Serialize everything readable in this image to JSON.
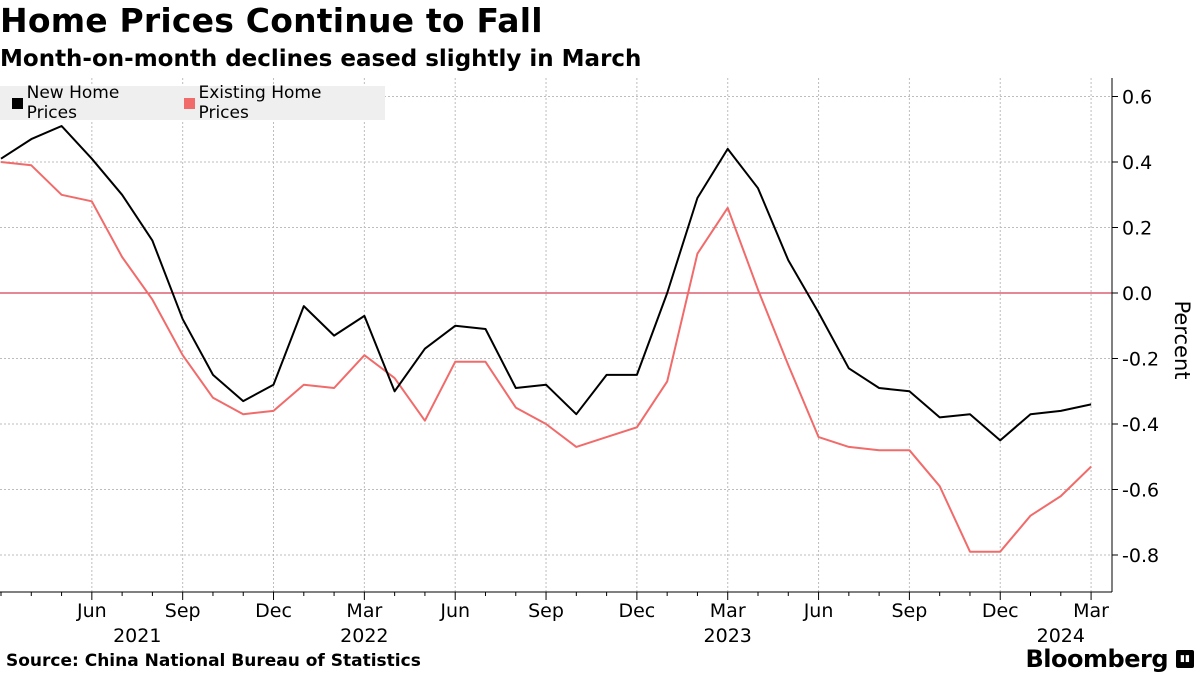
{
  "header": {
    "title": "Home Prices Continue to Fall",
    "subtitle": "Month-on-month declines eased slightly in March"
  },
  "footer": {
    "source": "Source: China National Bureau of Statistics",
    "brand": "Bloomberg",
    "brand_icon_text": "▮▮"
  },
  "colors": {
    "new_home": "#000000",
    "existing_home": "#f16b6b",
    "zero_line": "#c8102e",
    "grid": "#bdbdbd"
  },
  "chart_data": {
    "type": "line",
    "title": "Home Prices Continue to Fall",
    "subtitle": "Month-on-month declines eased slightly in March",
    "ylabel": "Percent",
    "xlabel": "",
    "ylim": [
      -0.9,
      0.65
    ],
    "yticks": [
      0.6,
      0.4,
      0.2,
      0.0,
      -0.2,
      -0.4,
      -0.6,
      -0.8
    ],
    "ytick_labels": [
      "0.6",
      "0.4",
      "0.2",
      "0.0",
      "-0.2",
      "-0.4",
      "-0.6",
      "-0.8"
    ],
    "x_month_ticks": [
      "Jun",
      "Sep",
      "Dec",
      "Mar",
      "Jun",
      "Sep",
      "Dec",
      "Mar",
      "Jun",
      "Sep",
      "Dec",
      "Mar"
    ],
    "x_month_tick_index": [
      3,
      6,
      9,
      12,
      15,
      18,
      21,
      24,
      27,
      30,
      33,
      36
    ],
    "x_year_labels": [
      "2021",
      "2022",
      "2023",
      "2024"
    ],
    "x_year_label_index": [
      4.5,
      12.0,
      24.0,
      35.0
    ],
    "legend_position": "top-left",
    "grid": true,
    "x": [
      "2021-03",
      "2021-04",
      "2021-05",
      "2021-06",
      "2021-07",
      "2021-08",
      "2021-09",
      "2021-10",
      "2021-11",
      "2021-12",
      "2022-01",
      "2022-02",
      "2022-03",
      "2022-04",
      "2022-05",
      "2022-06",
      "2022-07",
      "2022-08",
      "2022-09",
      "2022-10",
      "2022-11",
      "2022-12",
      "2023-01",
      "2023-02",
      "2023-03",
      "2023-04",
      "2023-05",
      "2023-06",
      "2023-07",
      "2023-08",
      "2023-09",
      "2023-10",
      "2023-11",
      "2023-12",
      "2024-01",
      "2024-02",
      "2024-03"
    ],
    "series": [
      {
        "name": "New Home Prices",
        "values": [
          0.41,
          0.47,
          0.51,
          0.41,
          0.3,
          0.16,
          -0.08,
          -0.25,
          -0.33,
          -0.28,
          -0.04,
          -0.13,
          -0.07,
          -0.3,
          -0.17,
          -0.1,
          -0.11,
          -0.29,
          -0.28,
          -0.37,
          -0.25,
          -0.25,
          0.0,
          0.29,
          0.44,
          0.32,
          0.1,
          -0.06,
          -0.23,
          -0.29,
          -0.3,
          -0.38,
          -0.37,
          -0.45,
          -0.37,
          -0.36,
          -0.34
        ]
      },
      {
        "name": "Existing Home Prices",
        "values": [
          0.4,
          0.39,
          0.3,
          0.28,
          0.11,
          -0.02,
          -0.19,
          -0.32,
          -0.37,
          -0.36,
          -0.28,
          -0.29,
          -0.19,
          -0.26,
          -0.39,
          -0.21,
          -0.21,
          -0.35,
          -0.4,
          -0.47,
          -0.44,
          -0.41,
          -0.27,
          0.12,
          0.26,
          0.01,
          -0.22,
          -0.44,
          -0.47,
          -0.48,
          -0.48,
          -0.59,
          -0.79,
          -0.79,
          -0.68,
          -0.62,
          -0.53
        ]
      }
    ]
  }
}
